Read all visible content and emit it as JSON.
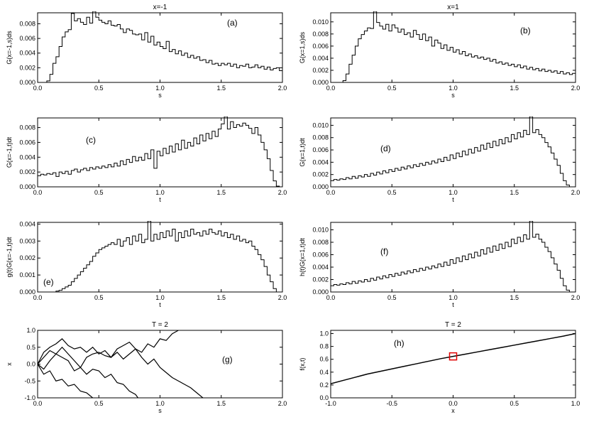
{
  "chart_data": [
    {
      "type": "line",
      "id": "a",
      "title": "x=-1",
      "panel_label": "(a)",
      "xlabel": "s",
      "ylabel": "G(x=-1,s)ds",
      "xlim": [
        0.0,
        2.0
      ],
      "ylim": [
        0.0,
        0.0095
      ],
      "xticks": [
        "0.0",
        "0.5",
        "1.0",
        "1.5",
        "2.0"
      ],
      "yticks": [
        "0.000",
        "0.002",
        "0.004",
        "0.006",
        "0.008"
      ],
      "ytick_values": [
        0.0,
        0.002,
        0.004,
        0.006,
        0.008
      ],
      "step_width": 0.025,
      "x_start": 0.0,
      "values": [
        0,
        0,
        0,
        0.0002,
        0.0011,
        0.0026,
        0.0035,
        0.0049,
        0.0062,
        0.0069,
        0.0072,
        0.0094,
        0.0084,
        0.0087,
        0.0082,
        0.0079,
        0.0089,
        0.0081,
        0.0102,
        0.0089,
        0.0085,
        0.0082,
        0.008,
        0.0084,
        0.0078,
        0.0077,
        0.0079,
        0.0073,
        0.0068,
        0.0073,
        0.0071,
        0.0066,
        0.0065,
        0.0066,
        0.0058,
        0.0068,
        0.0055,
        0.0063,
        0.0051,
        0.0055,
        0.0049,
        0.0046,
        0.0056,
        0.0042,
        0.0045,
        0.0039,
        0.0043,
        0.0037,
        0.004,
        0.0034,
        0.0037,
        0.0033,
        0.0035,
        0.003,
        0.0031,
        0.0027,
        0.003,
        0.0025,
        0.0026,
        0.0023,
        0.0026,
        0.0024,
        0.0026,
        0.0022,
        0.0025,
        0.002,
        0.0023,
        0.0022,
        0.0025,
        0.002,
        0.0021,
        0.0024,
        0.002,
        0.0022,
        0.0018,
        0.0021,
        0.0017,
        0.0019,
        0.002,
        0.0016
      ]
    },
    {
      "type": "line",
      "id": "b",
      "title": "x=1",
      "panel_label": "(b)",
      "xlabel": "s",
      "ylabel": "G(x=1,s)ds",
      "xlim": [
        0.0,
        2.0
      ],
      "ylim": [
        0.0,
        0.0115
      ],
      "xticks": [
        "0.0",
        "0.5",
        "1.0",
        "1.5",
        "2.0"
      ],
      "yticks": [
        "0.000",
        "0.002",
        "0.004",
        "0.006",
        "0.008",
        "0.010"
      ],
      "ytick_values": [
        0.0,
        0.002,
        0.004,
        0.006,
        0.008,
        0.01
      ],
      "step_width": 0.025,
      "x_start": 0.0,
      "values": [
        0,
        0,
        0,
        0,
        0.0003,
        0.0014,
        0.003,
        0.0045,
        0.006,
        0.0072,
        0.0079,
        0.0085,
        0.009,
        0.0089,
        0.0125,
        0.0099,
        0.0093,
        0.0088,
        0.0096,
        0.0085,
        0.0095,
        0.009,
        0.0083,
        0.0088,
        0.0079,
        0.0082,
        0.0075,
        0.0086,
        0.0079,
        0.0071,
        0.008,
        0.0069,
        0.0075,
        0.006,
        0.007,
        0.0065,
        0.0056,
        0.0062,
        0.0053,
        0.0058,
        0.005,
        0.0054,
        0.0047,
        0.0051,
        0.0044,
        0.0047,
        0.0042,
        0.0044,
        0.004,
        0.0042,
        0.0038,
        0.004,
        0.0035,
        0.0038,
        0.0032,
        0.0034,
        0.003,
        0.0032,
        0.0028,
        0.003,
        0.0026,
        0.0029,
        0.0024,
        0.0027,
        0.0022,
        0.0025,
        0.0021,
        0.0023,
        0.0019,
        0.0022,
        0.0018,
        0.002,
        0.0017,
        0.0019,
        0.0015,
        0.0018,
        0.0014,
        0.0016,
        0.0013,
        0.0015
      ]
    },
    {
      "type": "line",
      "id": "c",
      "title": "",
      "panel_label": "(c)",
      "xlabel": "t",
      "ylabel": "G(x=-1,t)dt",
      "xlim": [
        0.0,
        2.0
      ],
      "ylim": [
        0.0,
        0.0093
      ],
      "xticks": [
        "0.0",
        "0.5",
        "1.0",
        "1.5",
        "2.0"
      ],
      "yticks": [
        "0.000",
        "0.002",
        "0.004",
        "0.006",
        "0.008"
      ],
      "ytick_values": [
        0.0,
        0.002,
        0.004,
        0.006,
        0.008
      ],
      "step_width": 0.025,
      "x_start": 0.0,
      "values": [
        0.0015,
        0.0017,
        0.0016,
        0.0018,
        0.0017,
        0.0019,
        0.0014,
        0.002,
        0.0018,
        0.0021,
        0.0017,
        0.0022,
        0.0024,
        0.002,
        0.0023,
        0.0025,
        0.0022,
        0.0026,
        0.0024,
        0.0027,
        0.0025,
        0.0028,
        0.0026,
        0.003,
        0.0027,
        0.0032,
        0.0028,
        0.0035,
        0.003,
        0.0037,
        0.0033,
        0.0041,
        0.0035,
        0.004,
        0.0036,
        0.0045,
        0.0038,
        0.005,
        0.0025,
        0.0048,
        0.0042,
        0.0052,
        0.0045,
        0.0055,
        0.0047,
        0.0058,
        0.005,
        0.0063,
        0.0052,
        0.006,
        0.0055,
        0.0066,
        0.0058,
        0.007,
        0.0062,
        0.0072,
        0.0065,
        0.0075,
        0.0068,
        0.0078,
        0.0085,
        0.01,
        0.0078,
        0.0088,
        0.008,
        0.0084,
        0.0082,
        0.0086,
        0.0083,
        0.0079,
        0.0072,
        0.008,
        0.007,
        0.006,
        0.005,
        0.0038,
        0.0022,
        0.0008,
        0.0001,
        0
      ]
    },
    {
      "type": "line",
      "id": "d",
      "title": "",
      "panel_label": "(d)",
      "xlabel": "t",
      "ylabel": "G(x=1,t)dt",
      "xlim": [
        0.0,
        2.0
      ],
      "ylim": [
        0.0,
        0.0112
      ],
      "xticks": [
        "0.0",
        "0.5",
        "1.0",
        "1.5",
        "2.0"
      ],
      "yticks": [
        "0.000",
        "0.002",
        "0.004",
        "0.006",
        "0.008",
        "0.010"
      ],
      "ytick_values": [
        0.0,
        0.002,
        0.004,
        0.006,
        0.008,
        0.01
      ],
      "step_width": 0.025,
      "x_start": 0.0,
      "values": [
        0.001,
        0.0012,
        0.0011,
        0.0013,
        0.0012,
        0.0015,
        0.0013,
        0.0017,
        0.0014,
        0.0018,
        0.0016,
        0.002,
        0.0017,
        0.0022,
        0.0019,
        0.0024,
        0.0021,
        0.0026,
        0.0023,
        0.0028,
        0.0025,
        0.003,
        0.0027,
        0.0032,
        0.0029,
        0.0034,
        0.0031,
        0.0036,
        0.0033,
        0.0038,
        0.0035,
        0.004,
        0.0037,
        0.0042,
        0.0039,
        0.0045,
        0.0041,
        0.0048,
        0.0043,
        0.0052,
        0.0046,
        0.0055,
        0.0049,
        0.0058,
        0.0052,
        0.0061,
        0.0055,
        0.0064,
        0.0058,
        0.0068,
        0.0061,
        0.0071,
        0.0064,
        0.0074,
        0.0067,
        0.0077,
        0.007,
        0.008,
        0.0073,
        0.0085,
        0.0078,
        0.0088,
        0.0081,
        0.0092,
        0.0085,
        0.0125,
        0.0088,
        0.0093,
        0.0085,
        0.008,
        0.0072,
        0.0065,
        0.0055,
        0.0045,
        0.0035,
        0.0022,
        0.001,
        0.0003,
        0,
        0
      ]
    },
    {
      "type": "line",
      "id": "e",
      "title": "",
      "panel_label": "(e)",
      "xlabel": "t",
      "ylabel": "g(t)G(x=-1,t)dt",
      "xlim": [
        0.0,
        2.0
      ],
      "ylim": [
        0.0,
        0.0041
      ],
      "xticks": [
        "0.0",
        "0.5",
        "1.0",
        "1.5",
        "2.0"
      ],
      "yticks": [
        "0.000",
        "0.001",
        "0.002",
        "0.003",
        "0.004"
      ],
      "ytick_values": [
        0.0,
        0.001,
        0.002,
        0.003,
        0.004
      ],
      "step_width": 0.025,
      "x_start": 0.0,
      "values": [
        0,
        0,
        0,
        0,
        0,
        0,
        5e-05,
        0.0001,
        0.0002,
        0.0003,
        0.0004,
        0.0006,
        0.0008,
        0.001,
        0.0012,
        0.0014,
        0.0016,
        0.0018,
        0.0021,
        0.0023,
        0.0025,
        0.0026,
        0.0027,
        0.0028,
        0.0029,
        0.0028,
        0.0031,
        0.0027,
        0.003,
        0.0032,
        0.0028,
        0.0033,
        0.003,
        0.0034,
        0.0029,
        0.0031,
        0.0045,
        0.003,
        0.0034,
        0.0031,
        0.0035,
        0.0032,
        0.0036,
        0.0033,
        0.0037,
        0.003,
        0.0035,
        0.0032,
        0.0036,
        0.0033,
        0.0037,
        0.0034,
        0.0035,
        0.0033,
        0.0036,
        0.0034,
        0.0037,
        0.0035,
        0.0034,
        0.0036,
        0.0033,
        0.0035,
        0.0032,
        0.0034,
        0.0031,
        0.0033,
        0.003,
        0.0031,
        0.0029,
        0.003,
        0.0027,
        0.0025,
        0.0022,
        0.0019,
        0.0015,
        0.001,
        0.0006,
        0.0002,
        0,
        0
      ]
    },
    {
      "type": "line",
      "id": "f",
      "title": "",
      "panel_label": "(f)",
      "xlabel": "t",
      "ylabel": "h(t)G(x=1,t)dt",
      "xlim": [
        0.0,
        2.0
      ],
      "ylim": [
        0.0,
        0.0112
      ],
      "xticks": [
        "0.0",
        "0.5",
        "1.0",
        "1.5",
        "2.0"
      ],
      "yticks": [
        "0.000",
        "0.002",
        "0.004",
        "0.006",
        "0.008",
        "0.010"
      ],
      "ytick_values": [
        0.0,
        0.002,
        0.004,
        0.006,
        0.008,
        0.01
      ],
      "step_width": 0.025,
      "x_start": 0.0,
      "values": [
        0.001,
        0.0012,
        0.0011,
        0.0013,
        0.0012,
        0.0015,
        0.0013,
        0.0017,
        0.0014,
        0.0018,
        0.0016,
        0.002,
        0.0017,
        0.0022,
        0.0019,
        0.0024,
        0.0021,
        0.0026,
        0.0023,
        0.0028,
        0.0025,
        0.003,
        0.0027,
        0.0032,
        0.0029,
        0.0034,
        0.0031,
        0.0036,
        0.0033,
        0.0038,
        0.0035,
        0.004,
        0.0037,
        0.0042,
        0.0039,
        0.0045,
        0.0041,
        0.0048,
        0.0043,
        0.0052,
        0.0046,
        0.0055,
        0.0049,
        0.0058,
        0.0052,
        0.0061,
        0.0055,
        0.0064,
        0.0058,
        0.0068,
        0.0061,
        0.0071,
        0.0064,
        0.0074,
        0.0067,
        0.0077,
        0.007,
        0.008,
        0.0073,
        0.0085,
        0.0078,
        0.0088,
        0.0081,
        0.0092,
        0.0085,
        0.0125,
        0.0088,
        0.0093,
        0.0085,
        0.008,
        0.0072,
        0.0065,
        0.0055,
        0.0045,
        0.0035,
        0.0022,
        0.001,
        0.0003,
        0,
        0
      ]
    },
    {
      "type": "line",
      "id": "g",
      "title": "T = 2",
      "panel_label": "(g)",
      "xlabel": "s",
      "ylabel": "x",
      "xlim": [
        0.0,
        2.0
      ],
      "ylim": [
        -1.0,
        1.0
      ],
      "xticks": [
        "0.0",
        "0.5",
        "1.0",
        "1.5",
        "2.0"
      ],
      "yticks": [
        "-1.0",
        "-0.5",
        "0.0",
        "0.5",
        "1.0"
      ],
      "ytick_values": [
        -1.0,
        -0.5,
        0.0,
        0.5,
        1.0
      ],
      "series": [
        {
          "x": [
            0,
            0.05,
            0.1,
            0.15,
            0.2,
            0.25,
            0.3,
            0.35,
            0.4,
            0.45,
            0.5,
            0.55,
            0.6,
            0.65,
            0.7,
            0.75,
            0.8,
            0.85,
            0.9,
            0.95,
            1.0,
            1.05,
            1.1,
            1.15
          ],
          "y": [
            0.0,
            0.35,
            0.5,
            0.6,
            0.75,
            0.55,
            0.45,
            0.5,
            0.35,
            0.5,
            0.3,
            0.4,
            0.2,
            0.35,
            0.15,
            0.3,
            0.45,
            0.35,
            0.6,
            0.5,
            0.75,
            0.7,
            0.9,
            1.0
          ]
        },
        {
          "x": [
            0,
            0.05,
            0.1,
            0.15,
            0.2,
            0.25,
            0.3,
            0.35,
            0.4,
            0.45,
            0.5,
            0.55,
            0.6,
            0.65,
            0.7,
            0.75,
            0.8,
            0.85,
            0.9,
            0.95,
            1.0,
            1.05,
            1.1,
            1.15,
            1.2,
            1.25,
            1.3,
            1.35
          ],
          "y": [
            0.0,
            0.2,
            0.4,
            0.3,
            0.5,
            0.3,
            0.1,
            -0.1,
            0.2,
            0.3,
            0.35,
            0.25,
            0.2,
            0.45,
            0.55,
            0.65,
            0.45,
            0.2,
            0.0,
            0.15,
            -0.1,
            -0.25,
            -0.4,
            -0.5,
            -0.6,
            -0.7,
            -0.85,
            -1.0
          ]
        },
        {
          "x": [
            0,
            0.05,
            0.1,
            0.15,
            0.2,
            0.25,
            0.3,
            0.35,
            0.4,
            0.45,
            0.5,
            0.55,
            0.6,
            0.65,
            0.7,
            0.75,
            0.8,
            0.82
          ],
          "y": [
            0.0,
            -0.15,
            0.1,
            0.3,
            0.2,
            0.1,
            -0.2,
            -0.1,
            -0.3,
            -0.15,
            -0.2,
            -0.4,
            -0.3,
            -0.55,
            -0.6,
            -0.8,
            -0.9,
            -1.0
          ]
        },
        {
          "x": [
            0,
            0.05,
            0.1,
            0.15,
            0.2,
            0.25,
            0.3,
            0.35,
            0.4,
            0.45
          ],
          "y": [
            0.0,
            -0.3,
            -0.2,
            -0.5,
            -0.45,
            -0.65,
            -0.6,
            -0.8,
            -0.85,
            -1.0
          ]
        }
      ]
    },
    {
      "type": "line",
      "id": "h",
      "title": "T = 2",
      "panel_label": "(h)",
      "xlabel": "x",
      "ylabel": "f(x,t)",
      "xlim": [
        -1.0,
        1.0
      ],
      "ylim": [
        0.0,
        1.05
      ],
      "xticks": [
        "-1.0",
        "-0.5",
        "0.0",
        "0.5",
        "1.0"
      ],
      "yticks": [
        "0.0",
        "0.2",
        "0.4",
        "0.6",
        "0.8",
        "1.0"
      ],
      "ytick_values": [
        0.0,
        0.2,
        0.4,
        0.6,
        0.8,
        1.0
      ],
      "x": [
        -1.0,
        -0.9,
        -0.8,
        -0.7,
        -0.6,
        -0.5,
        -0.4,
        -0.3,
        -0.2,
        -0.1,
        0.0,
        0.1,
        0.2,
        0.3,
        0.4,
        0.5,
        0.6,
        0.7,
        0.8,
        0.9,
        1.0
      ],
      "y": [
        0.22,
        0.27,
        0.32,
        0.37,
        0.41,
        0.45,
        0.49,
        0.53,
        0.57,
        0.61,
        0.645,
        0.68,
        0.715,
        0.75,
        0.785,
        0.82,
        0.855,
        0.89,
        0.925,
        0.96,
        1.0
      ],
      "marker": {
        "x": 0.0,
        "y": 0.645,
        "shape": "square",
        "color": "#e00000"
      }
    }
  ]
}
